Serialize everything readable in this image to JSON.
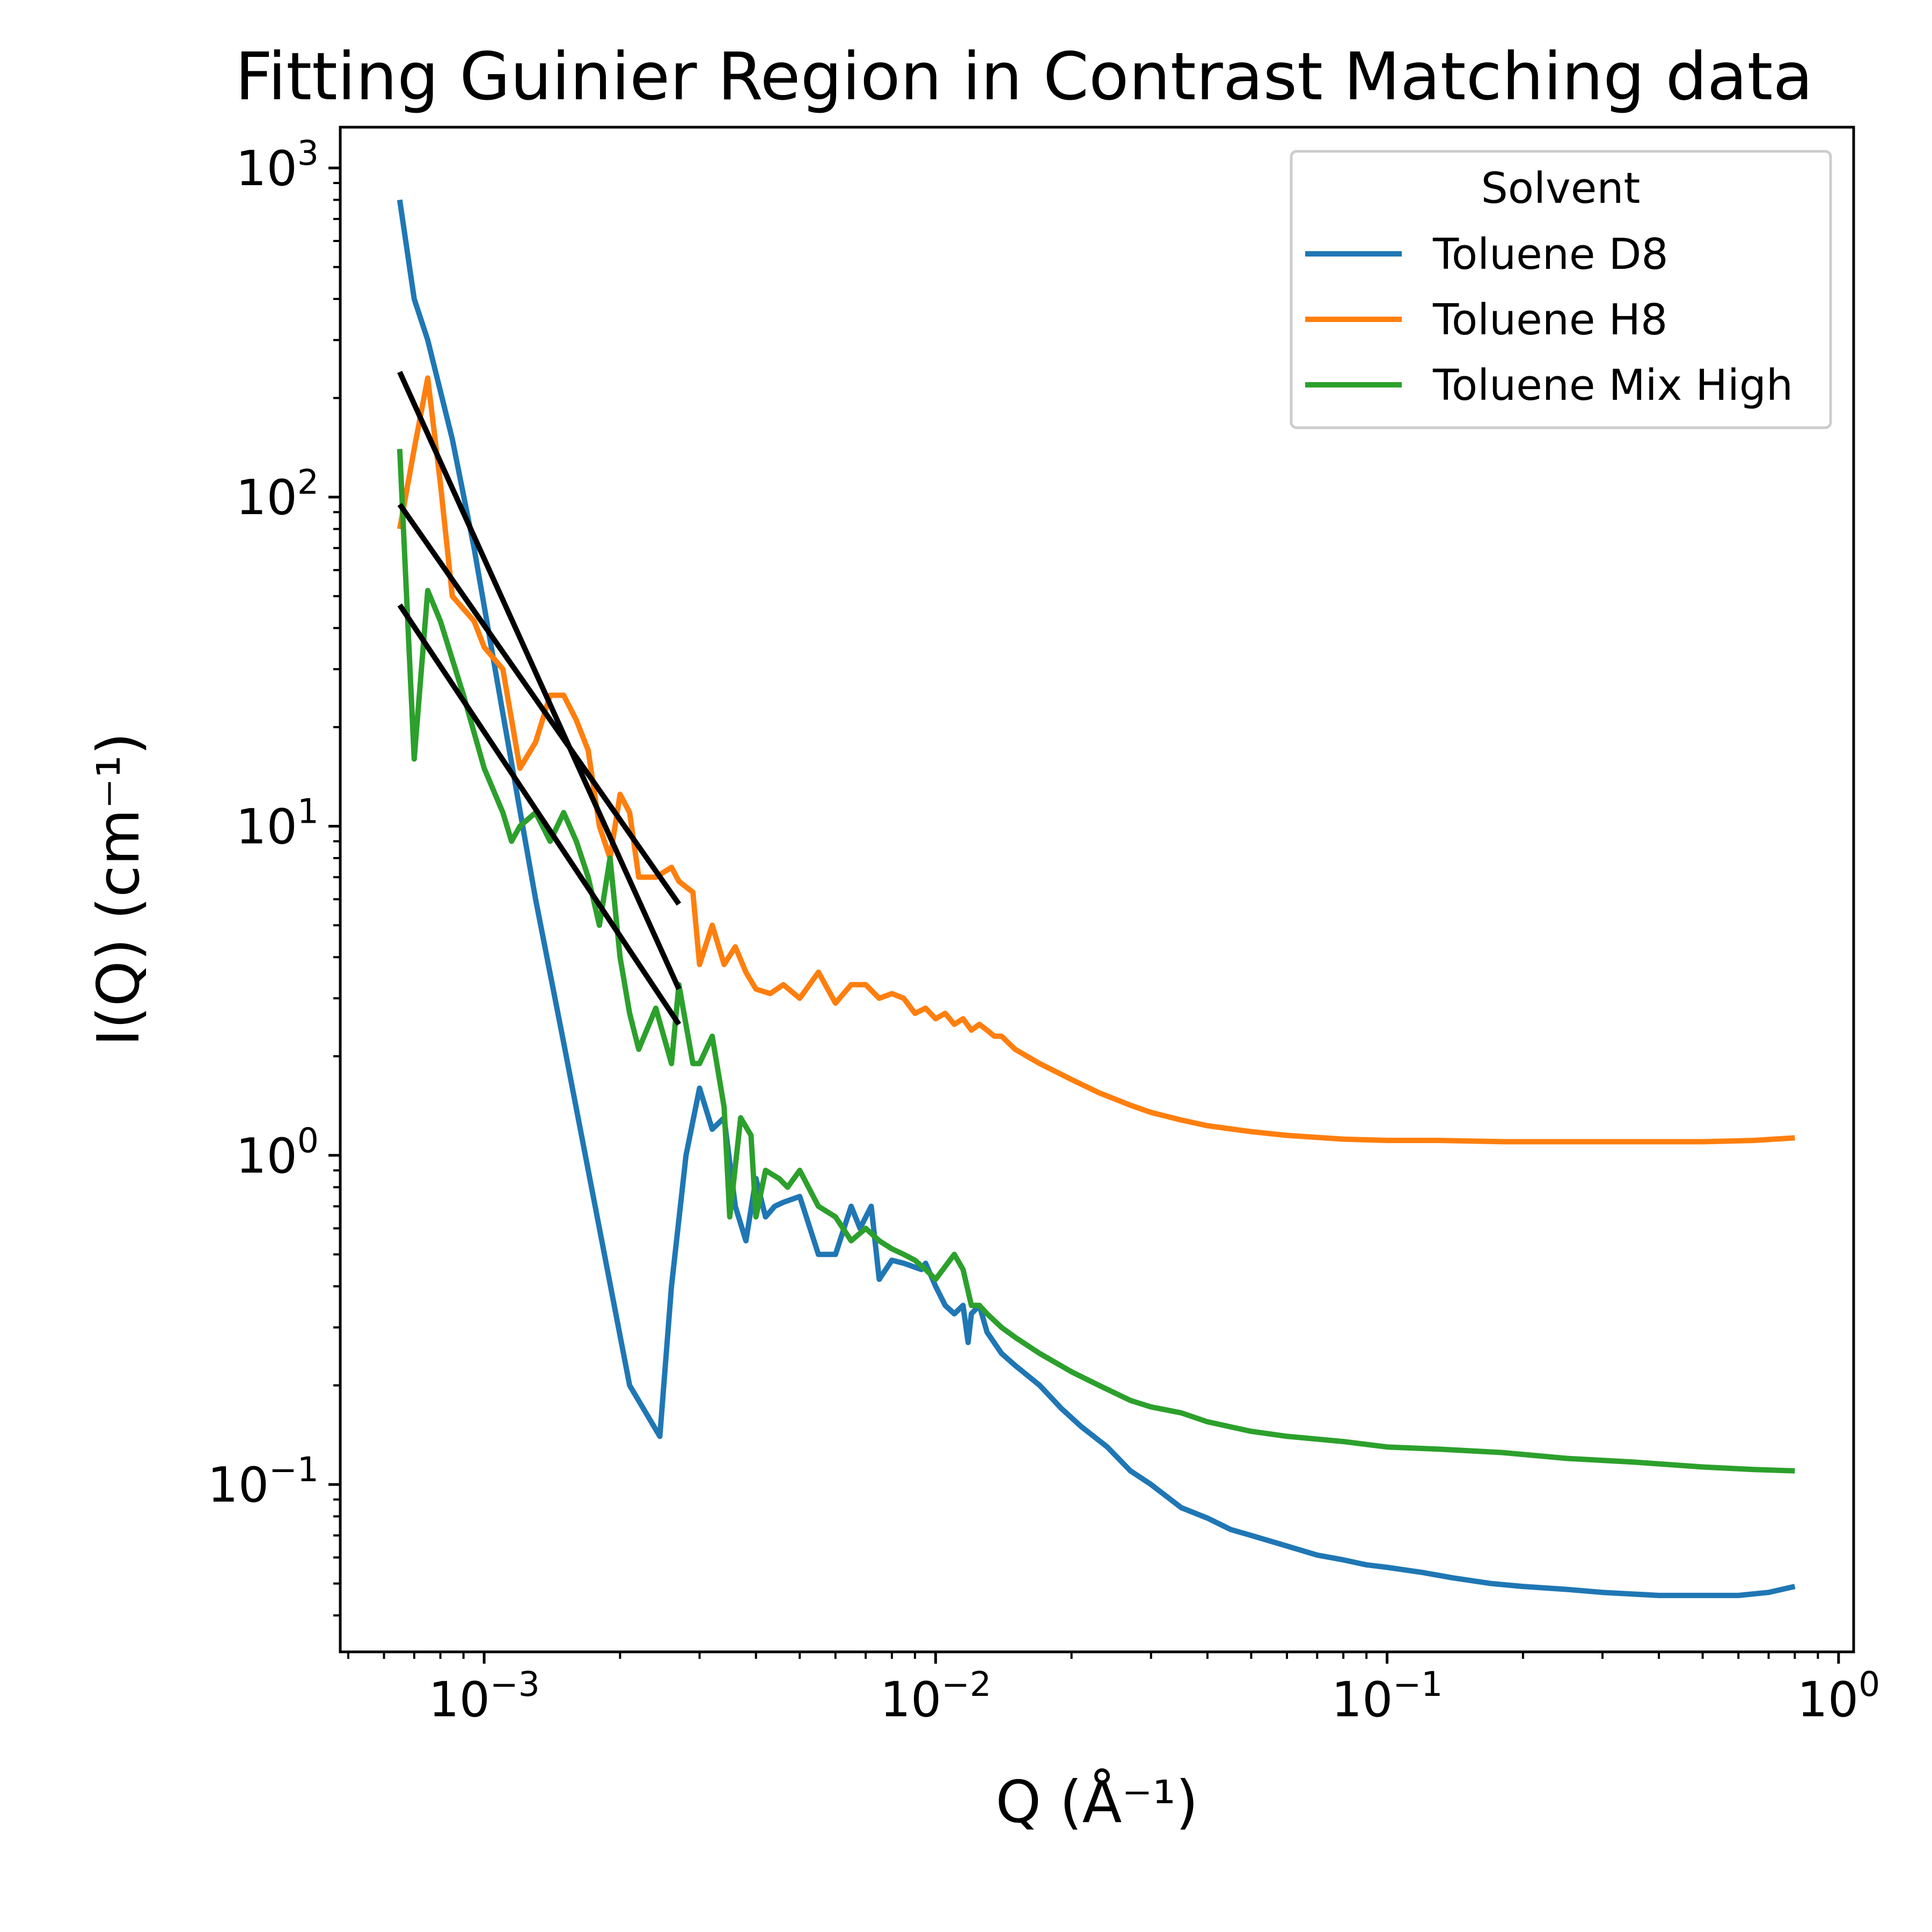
{
  "chart_data": {
    "type": "line",
    "title": "Fitting Guinier Region in Contrast Matching data",
    "xlabel": "Q (Å⁻¹)",
    "ylabel": "I(Q) (cm⁻¹)",
    "xscale": "log",
    "yscale": "log",
    "xlim": [
      0.00048,
      1.08
    ],
    "ylim": [
      0.031,
      1330
    ],
    "xticks": [
      {
        "value": 0.001,
        "base": "10",
        "exp": "−3"
      },
      {
        "value": 0.01,
        "base": "10",
        "exp": "−2"
      },
      {
        "value": 0.1,
        "base": "10",
        "exp": "−1"
      },
      {
        "value": 1,
        "base": "10",
        "exp": "0"
      }
    ],
    "yticks": [
      {
        "value": 0.1,
        "base": "10",
        "exp": "−1"
      },
      {
        "value": 1,
        "base": "10",
        "exp": "0"
      },
      {
        "value": 10,
        "base": "10",
        "exp": "1"
      },
      {
        "value": 100,
        "base": "10",
        "exp": "2"
      },
      {
        "value": 1000,
        "base": "10",
        "exp": "3"
      }
    ],
    "grid": false,
    "legend": {
      "title": "Solvent",
      "position": "top-right"
    },
    "series": [
      {
        "name": "Toluene D8",
        "color": "#1f77b4",
        "x": [
          0.00065,
          0.0007,
          0.00075,
          0.00085,
          0.00095,
          0.0011,
          0.0013,
          0.0015,
          0.0018,
          0.0021,
          0.00245,
          0.0026,
          0.0028,
          0.003,
          0.0032,
          0.0034,
          0.0036,
          0.0038,
          0.004,
          0.0042,
          0.0044,
          0.0046,
          0.005,
          0.0055,
          0.006,
          0.0065,
          0.0068,
          0.0072,
          0.0075,
          0.008,
          0.0085,
          0.0093,
          0.0095,
          0.01,
          0.0105,
          0.011,
          0.0115,
          0.0118,
          0.012,
          0.0125,
          0.013,
          0.014,
          0.015,
          0.017,
          0.019,
          0.021,
          0.024,
          0.027,
          0.03,
          0.035,
          0.04,
          0.045,
          0.05,
          0.06,
          0.07,
          0.08,
          0.09,
          0.1,
          0.12,
          0.14,
          0.17,
          0.2,
          0.25,
          0.3,
          0.4,
          0.5,
          0.6,
          0.7,
          0.8
        ],
        "y": [
          800,
          400,
          300,
          150,
          70,
          22,
          6,
          2.2,
          0.6,
          0.2,
          0.14,
          0.4,
          1.0,
          1.6,
          1.2,
          1.3,
          0.7,
          0.55,
          0.85,
          0.65,
          0.7,
          0.72,
          0.75,
          0.5,
          0.5,
          0.7,
          0.6,
          0.7,
          0.42,
          0.48,
          0.47,
          0.45,
          0.47,
          0.4,
          0.35,
          0.33,
          0.35,
          0.27,
          0.33,
          0.35,
          0.29,
          0.25,
          0.23,
          0.2,
          0.17,
          0.15,
          0.13,
          0.11,
          0.1,
          0.085,
          0.079,
          0.073,
          0.07,
          0.065,
          0.061,
          0.059,
          0.057,
          0.056,
          0.054,
          0.052,
          0.05,
          0.049,
          0.048,
          0.047,
          0.046,
          0.046,
          0.046,
          0.047,
          0.049
        ]
      },
      {
        "name": "Toluene H8",
        "color": "#ff7f0e",
        "x": [
          0.00065,
          0.0007,
          0.00075,
          0.0008,
          0.00085,
          0.00095,
          0.001,
          0.0011,
          0.0012,
          0.0013,
          0.0014,
          0.0015,
          0.0016,
          0.0017,
          0.0018,
          0.0019,
          0.002,
          0.0021,
          0.0022,
          0.0024,
          0.0026,
          0.0027,
          0.0029,
          0.003,
          0.0032,
          0.0034,
          0.0036,
          0.0038,
          0.004,
          0.0043,
          0.0046,
          0.005,
          0.0055,
          0.006,
          0.0065,
          0.007,
          0.0075,
          0.008,
          0.0085,
          0.009,
          0.0095,
          0.01,
          0.0105,
          0.011,
          0.0115,
          0.012,
          0.0125,
          0.013,
          0.0135,
          0.014,
          0.015,
          0.017,
          0.02,
          0.023,
          0.027,
          0.03,
          0.035,
          0.04,
          0.05,
          0.06,
          0.08,
          0.1,
          0.13,
          0.18,
          0.25,
          0.35,
          0.5,
          0.65,
          0.8
        ],
        "y": [
          80,
          140,
          230,
          110,
          50,
          42,
          35,
          30,
          15,
          18,
          25,
          25,
          21,
          17,
          10,
          8,
          12.5,
          11,
          7,
          7,
          7.5,
          6.8,
          6.3,
          3.8,
          5,
          3.8,
          4.3,
          3.6,
          3.2,
          3.1,
          3.3,
          3.0,
          3.6,
          2.9,
          3.3,
          3.3,
          3.0,
          3.1,
          3.0,
          2.7,
          2.8,
          2.6,
          2.7,
          2.5,
          2.6,
          2.4,
          2.5,
          2.4,
          2.3,
          2.3,
          2.1,
          1.9,
          1.7,
          1.55,
          1.42,
          1.35,
          1.28,
          1.23,
          1.18,
          1.15,
          1.12,
          1.11,
          1.11,
          1.1,
          1.1,
          1.1,
          1.1,
          1.11,
          1.13
        ]
      },
      {
        "name": "Toluene Mix High",
        "color": "#2ca02c",
        "x": [
          0.00065,
          0.0007,
          0.00075,
          0.0008,
          0.0009,
          0.001,
          0.0011,
          0.00115,
          0.0012,
          0.0013,
          0.0014,
          0.0015,
          0.0016,
          0.0017,
          0.0018,
          0.0019,
          0.002,
          0.0021,
          0.0022,
          0.0024,
          0.0026,
          0.0027,
          0.0029,
          0.003,
          0.0032,
          0.0034,
          0.0035,
          0.0037,
          0.0039,
          0.004,
          0.0042,
          0.0045,
          0.0047,
          0.005,
          0.0055,
          0.006,
          0.0065,
          0.007,
          0.0075,
          0.008,
          0.0085,
          0.009,
          0.0095,
          0.01,
          0.011,
          0.0115,
          0.012,
          0.0125,
          0.013,
          0.014,
          0.015,
          0.017,
          0.02,
          0.023,
          0.027,
          0.03,
          0.035,
          0.04,
          0.05,
          0.06,
          0.08,
          0.1,
          0.13,
          0.18,
          0.25,
          0.35,
          0.5,
          0.65,
          0.8
        ],
        "y": [
          140,
          16,
          52,
          42,
          25,
          15,
          11,
          9,
          10,
          11,
          9,
          11,
          9,
          7,
          5,
          8,
          4,
          2.7,
          2.1,
          2.8,
          1.9,
          3.3,
          1.9,
          1.9,
          2.3,
          1.4,
          0.65,
          1.3,
          1.15,
          0.65,
          0.9,
          0.85,
          0.8,
          0.9,
          0.7,
          0.65,
          0.55,
          0.6,
          0.55,
          0.52,
          0.5,
          0.48,
          0.45,
          0.42,
          0.5,
          0.45,
          0.35,
          0.35,
          0.33,
          0.3,
          0.28,
          0.25,
          0.22,
          0.2,
          0.18,
          0.172,
          0.165,
          0.155,
          0.145,
          0.14,
          0.135,
          0.13,
          0.128,
          0.125,
          0.12,
          0.117,
          0.113,
          0.111,
          0.11
        ]
      }
    ],
    "fit_lines": [
      {
        "color": "#000000",
        "x": [
          0.00065,
          0.0027
        ],
        "y": [
          240,
          3.2
        ]
      },
      {
        "color": "#000000",
        "x": [
          0.00065,
          0.0027
        ],
        "y": [
          95,
          5.8
        ]
      },
      {
        "color": "#000000",
        "x": [
          0.00065,
          0.0027
        ],
        "y": [
          47,
          2.5
        ]
      }
    ]
  }
}
